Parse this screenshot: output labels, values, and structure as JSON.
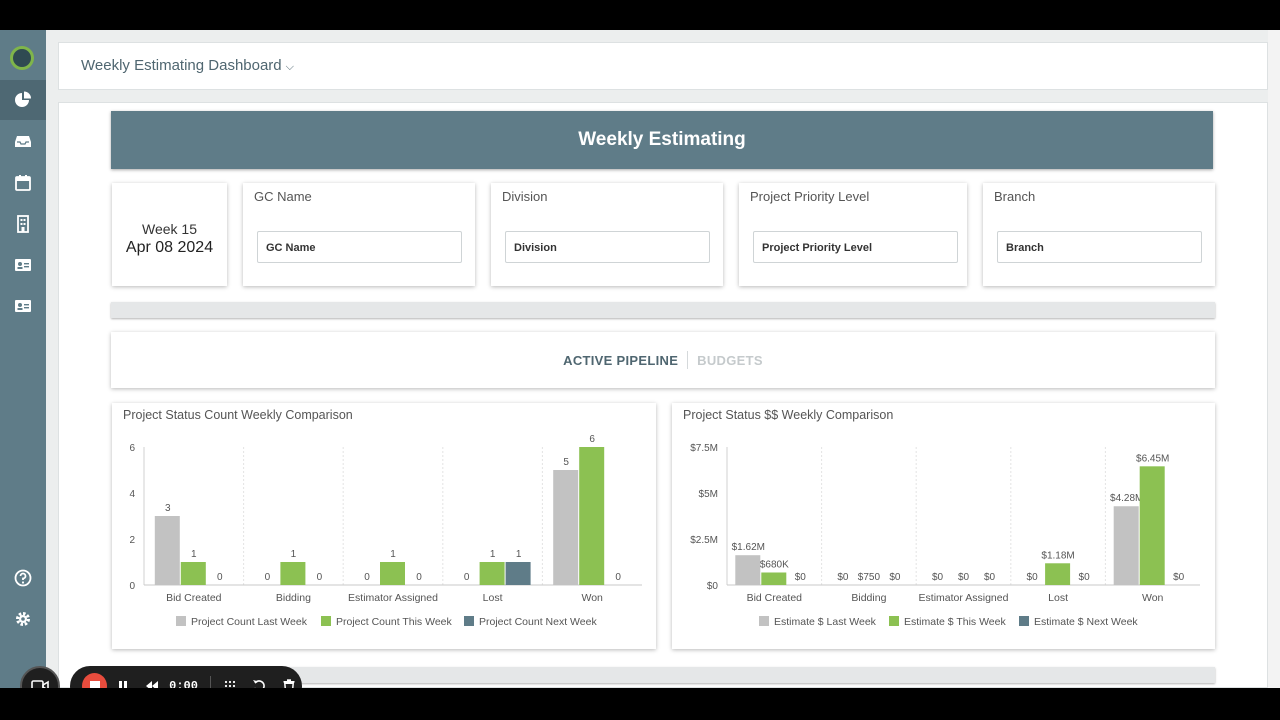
{
  "header": {
    "title": "Weekly Estimating Dashboard"
  },
  "banner": {
    "title": "Weekly Estimating"
  },
  "week": {
    "week_label": "Week 15",
    "date": "Apr 08 2024"
  },
  "filters": [
    {
      "label": "GC Name",
      "placeholder": "GC Name"
    },
    {
      "label": "Division",
      "placeholder": "Division"
    },
    {
      "label": "Project Priority Level",
      "placeholder": "Project Priority Level"
    },
    {
      "label": "Branch",
      "placeholder": "Branch"
    }
  ],
  "tabs": [
    {
      "label": "ACTIVE PIPELINE",
      "active": true
    },
    {
      "label": "BUDGETS",
      "active": false
    }
  ],
  "sidebar": {
    "icons": [
      "logo-icon",
      "pie-chart-icon",
      "inbox-icon",
      "calendar-icon",
      "building-icon",
      "id-card-icon",
      "contact-card-icon",
      "help-icon",
      "gear-icon"
    ]
  },
  "recorder": {
    "time": "0:00"
  },
  "colors": {
    "last": "#c2c2c2",
    "this": "#8cc152",
    "next": "#5f7c88",
    "banner": "#5f7c88"
  },
  "chart_data": [
    {
      "type": "bar",
      "title": "Project Status Count Weekly Comparison",
      "categories": [
        "Bid Created",
        "Bidding",
        "Estimator Assigned",
        "Lost",
        "Won"
      ],
      "ylim": [
        0,
        6
      ],
      "yticks": [
        0,
        2,
        4,
        6
      ],
      "ytick_labels": [
        "0",
        "2",
        "4",
        "6"
      ],
      "series": [
        {
          "name": "Project Count Last Week",
          "values": [
            3,
            0,
            0,
            0,
            5
          ],
          "labels": [
            "3",
            "0",
            "0",
            "0",
            "5"
          ]
        },
        {
          "name": "Project Count This Week",
          "values": [
            1,
            1,
            1,
            1,
            6
          ],
          "labels": [
            "1",
            "1",
            "1",
            "1",
            "6"
          ]
        },
        {
          "name": "Project Count Next Week",
          "values": [
            0,
            0,
            0,
            1,
            0
          ],
          "labels": [
            "0",
            "0",
            "0",
            "1",
            "0"
          ]
        }
      ],
      "legend": "bottom"
    },
    {
      "type": "bar",
      "title": "Project Status $$ Weekly Comparison",
      "categories": [
        "Bid Created",
        "Bidding",
        "Estimator Assigned",
        "Lost",
        "Won"
      ],
      "ylim": [
        0,
        7500000
      ],
      "yticks": [
        0,
        2500000,
        5000000,
        7500000
      ],
      "ytick_labels": [
        "$0",
        "$2.5M",
        "$5M",
        "$7.5M"
      ],
      "series": [
        {
          "name": "Estimate $ Last Week",
          "values": [
            1620000,
            0,
            0,
            0,
            4280000
          ],
          "labels": [
            "$1.62M",
            "$0",
            "$0",
            "$0",
            "$4.28M"
          ]
        },
        {
          "name": "Estimate $ This Week",
          "values": [
            680000,
            750,
            0,
            1180000,
            6450000
          ],
          "labels": [
            "$680K",
            "$750",
            "$0",
            "$1.18M",
            "$6.45M"
          ]
        },
        {
          "name": "Estimate $ Next Week",
          "values": [
            0,
            0,
            0,
            0,
            0
          ],
          "labels": [
            "$0",
            "$0",
            "$0",
            "$0",
            "$0"
          ]
        }
      ],
      "legend": "bottom"
    }
  ]
}
